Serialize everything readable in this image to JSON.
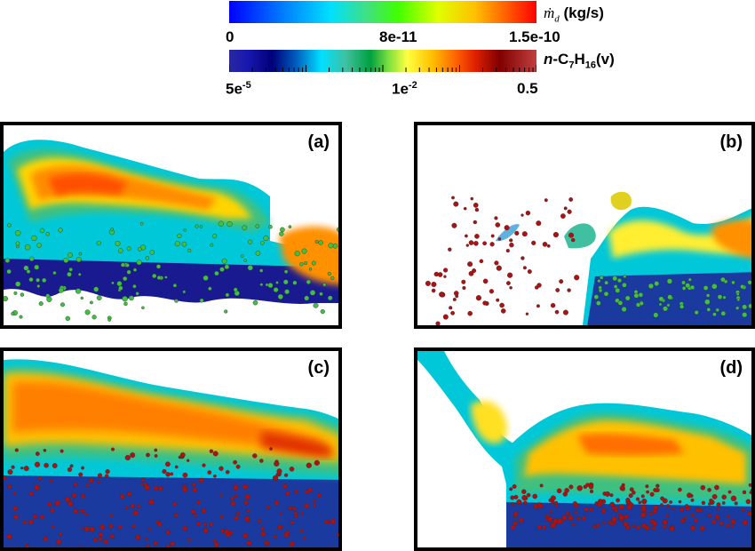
{
  "colorbar_top": {
    "unit_label": "(kg/s)",
    "symbol": "ṁ",
    "symbol_sub": "d",
    "tick_min": "0",
    "tick_mid": "8e-11",
    "tick_max": "1.5e-10",
    "colors": [
      "#0000ff",
      "#00e0ff",
      "#40ff00",
      "#ffc000",
      "#ff0000"
    ]
  },
  "colorbar_bottom": {
    "species_prefix": "n",
    "species_main": "-C",
    "species_sub1": "7",
    "species_h": "H",
    "species_sub2": "16",
    "species_suffix": "(v)",
    "tick_min": "5e-5",
    "tick_min_sup": "-5",
    "tick_mid": "1e-2",
    "tick_mid_sup": "-2",
    "tick_max": "0.5",
    "log_scale": true
  },
  "panels": [
    {
      "label": "(a)"
    },
    {
      "label": "(b)"
    },
    {
      "label": "(c)"
    },
    {
      "label": "(d)"
    }
  ]
}
